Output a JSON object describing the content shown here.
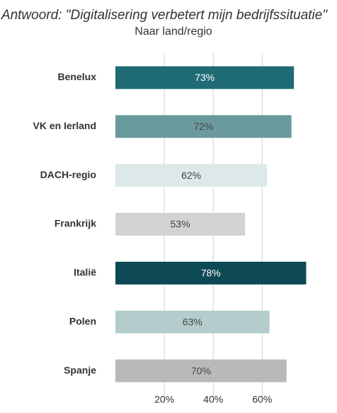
{
  "chart_data": {
    "type": "bar",
    "orientation": "horizontal",
    "title": "Antwoord: \"Digitalisering verbetert mijn bedrijfssituatie\"",
    "subtitle": "Naar land/regio",
    "categories": [
      "Benelux",
      "VK en Ierland",
      "DACH-regio",
      "Frankrijk",
      "Italië",
      "Polen",
      "Spanje"
    ],
    "values": [
      73,
      72,
      62,
      53,
      78,
      63,
      70
    ],
    "value_labels": [
      "73%",
      "72%",
      "62%",
      "53%",
      "78%",
      "63%",
      "70%"
    ],
    "colors": [
      "#1f6b73",
      "#6b9a9e",
      "#dde9e8",
      "#d2d2d2",
      "#0d4955",
      "#b4cccc",
      "#b8bab9"
    ],
    "xlim": [
      0,
      88
    ],
    "xticks": [
      {
        "value": 20,
        "label": "20%"
      },
      {
        "value": 40,
        "label": "40%"
      },
      {
        "value": 60,
        "label": "60%"
      }
    ],
    "grid": true
  }
}
